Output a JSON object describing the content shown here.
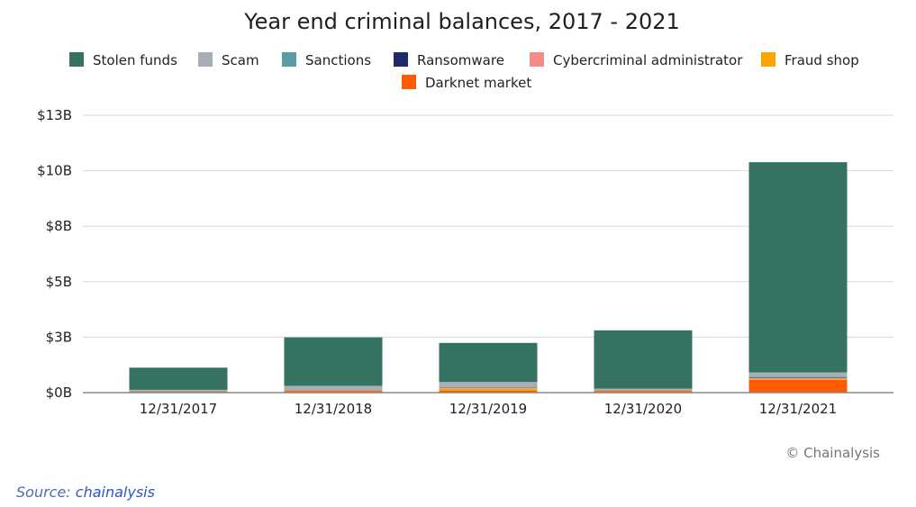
{
  "chart_data": {
    "type": "bar",
    "stacked": true,
    "title": "Year end criminal balances, 2017 - 2021",
    "xlabel": "",
    "ylabel": "",
    "ylim": [
      0,
      13
    ],
    "y_ticks": [
      0,
      2.6,
      5.2,
      7.8,
      10.4,
      13
    ],
    "y_tick_labels": [
      "$0B",
      "$3B",
      "$5B",
      "$8B",
      "$10B",
      "$13B"
    ],
    "grid": true,
    "legend_position": "top",
    "categories": [
      "12/31/2017",
      "12/31/2018",
      "12/31/2019",
      "12/31/2020",
      "12/31/2021"
    ],
    "series": [
      {
        "name": "Darknet market",
        "color": "#ff5a00",
        "values": [
          0.05,
          0.08,
          0.1,
          0.08,
          0.6
        ]
      },
      {
        "name": "Fraud shop",
        "color": "#ffa500",
        "values": [
          0.01,
          0.02,
          0.1,
          0.02,
          0.05
        ]
      },
      {
        "name": "Cybercriminal administrator",
        "color": "#f08c8c",
        "values": [
          0.01,
          0.02,
          0.02,
          0.02,
          0.03
        ]
      },
      {
        "name": "Ransomware",
        "color": "#1f2a6b",
        "values": [
          0.01,
          0.01,
          0.01,
          0.01,
          0.02
        ]
      },
      {
        "name": "Sanctions",
        "color": "#5b9ba8",
        "values": [
          0.01,
          0.01,
          0.02,
          0.01,
          0.05
        ]
      },
      {
        "name": "Scam",
        "color": "#a7aeb8",
        "values": [
          0.04,
          0.18,
          0.25,
          0.05,
          0.2
        ]
      },
      {
        "name": "Stolen funds",
        "color": "#357262",
        "values": [
          1.04,
          2.27,
          1.83,
          2.73,
          9.85
        ]
      }
    ],
    "legend_order": [
      "Stolen funds",
      "Scam",
      "Sanctions",
      "Ransomware",
      "Cybercriminal administrator",
      "Fraud shop",
      "Darknet market"
    ],
    "watermark": "© Chainalysis"
  },
  "source": {
    "prefix": "Source: ",
    "link_text": "chainalysis"
  }
}
